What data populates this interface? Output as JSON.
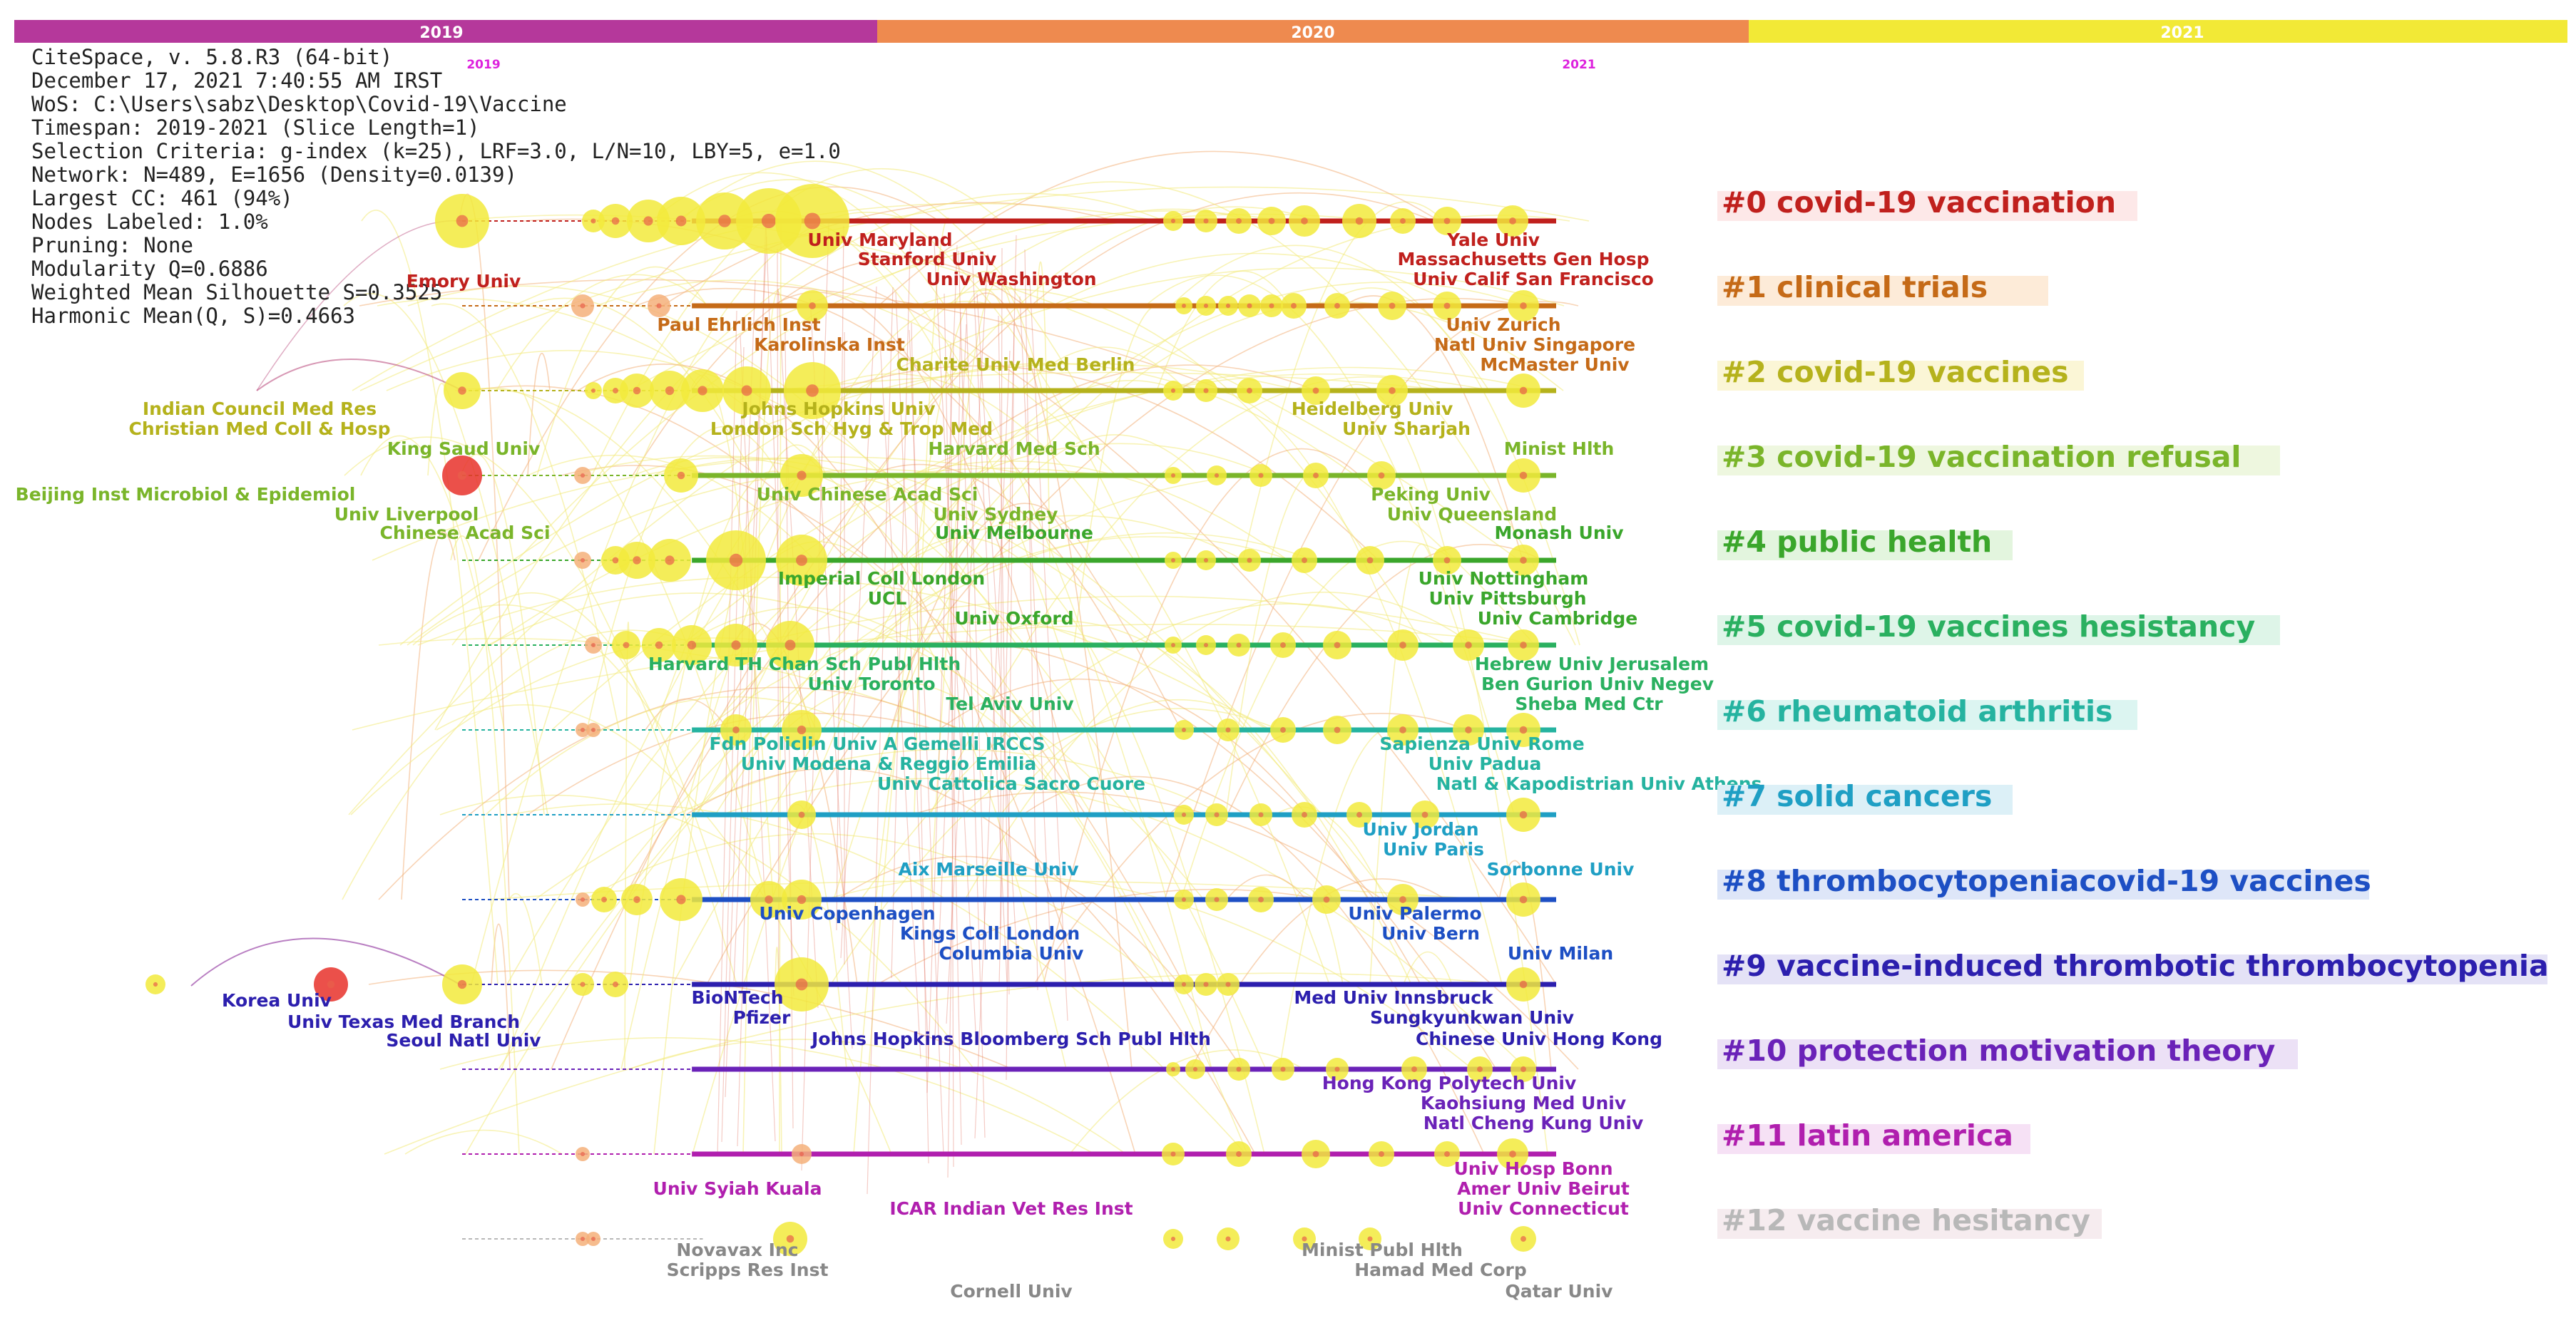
{
  "timeline": {
    "years": [
      {
        "label": "2019",
        "color": "#b5389b"
      },
      {
        "label": "2020",
        "color": "#ee8a4f"
      },
      {
        "label": "2021",
        "color": "#f2e936"
      }
    ],
    "year_markers": [
      "2019",
      "2021"
    ],
    "marker_color": "#dd22dd"
  },
  "info_panel": [
    "CiteSpace, v. 5.8.R3 (64-bit)",
    "December 17, 2021 7:40:55 AM IRST",
    "WoS: C:\\Users\\sabz\\Desktop\\Covid-19\\Vaccine",
    "Timespan: 2019-2021 (Slice Length=1)",
    "Selection Criteria: g-index (k=25), LRF=3.0, L/N=10, LBY=5, e=1.0",
    "Network: N=489, E=1656 (Density=0.0139)",
    "Largest CC: 461 (94%)",
    "Nodes Labeled: 1.0%",
    "Pruning: None",
    "Modularity Q=0.6886",
    "Weighted Mean Silhouette S=0.3525",
    "Harmonic Mean(Q, S)=0.4663"
  ],
  "clusters": [
    {
      "label": "#0 covid-19 vaccination",
      "color": "#c0201d",
      "bg": "#fde8e8"
    },
    {
      "label": "#1 clinical trials",
      "color": "#c56a17",
      "bg": "#fdebd8"
    },
    {
      "label": "#2 covid-19 vaccines",
      "color": "#b5b21c",
      "bg": "#fbf6d6"
    },
    {
      "label": "#3 covid-19 vaccination refusal",
      "color": "#7ab52a",
      "bg": "#eef7df"
    },
    {
      "label": "#4 public health",
      "color": "#3aa62b",
      "bg": "#e3f5de"
    },
    {
      "label": "#5 covid-19 vaccines hesistancy",
      "color": "#2ab060",
      "bg": "#def5e8"
    },
    {
      "label": "#6 rheumatoid arthritis",
      "color": "#25b3a0",
      "bg": "#dcf5f1"
    },
    {
      "label": "#7 solid cancers",
      "color": "#1f9fc4",
      "bg": "#dcf0f7"
    },
    {
      "label": "#8 thrombocytopeniacovid-19 vaccines",
      "color": "#1d4fc4",
      "bg": "#dee6f8"
    },
    {
      "label": "#9 vaccine-induced thrombotic thrombocytopenia",
      "color": "#2c1fae",
      "bg": "#e4e2f6"
    },
    {
      "label": "#10 protection motivation theory",
      "color": "#6a22b8",
      "bg": "#ece1f6"
    },
    {
      "label": "#11 latin america",
      "color": "#b01fae",
      "bg": "#f6e1f5"
    },
    {
      "label": "#12 vaccine hesitancy",
      "color": "#b8b8b8",
      "bg": "#f6ecef"
    }
  ],
  "node_labels": [
    {
      "text": "Emory Univ",
      "cluster": 0
    },
    {
      "text": "Univ Maryland",
      "cluster": 0
    },
    {
      "text": "Stanford Univ",
      "cluster": 0
    },
    {
      "text": "Univ Washington",
      "cluster": 0
    },
    {
      "text": "Yale Univ",
      "cluster": 0
    },
    {
      "text": "Massachusetts Gen Hosp",
      "cluster": 0
    },
    {
      "text": "Univ Calif San Francisco",
      "cluster": 0
    },
    {
      "text": "Paul Ehrlich Inst",
      "cluster": 1
    },
    {
      "text": "Karolinska Inst",
      "cluster": 1
    },
    {
      "text": "Univ Zurich",
      "cluster": 1
    },
    {
      "text": "Natl Univ Singapore",
      "cluster": 1
    },
    {
      "text": "McMaster Univ",
      "cluster": 1
    },
    {
      "text": "Charite Univ Med Berlin",
      "cluster": 2
    },
    {
      "text": "Indian Council Med Res",
      "cluster": 2
    },
    {
      "text": "Christian Med Coll & Hosp",
      "cluster": 2
    },
    {
      "text": "Johns Hopkins Univ",
      "cluster": 2
    },
    {
      "text": "London Sch Hyg & Trop Med",
      "cluster": 2
    },
    {
      "text": "Heidelberg Univ",
      "cluster": 2
    },
    {
      "text": "Univ Sharjah",
      "cluster": 2
    },
    {
      "text": "King Saud Univ",
      "cluster": 3
    },
    {
      "text": "Harvard Med Sch",
      "cluster": 3
    },
    {
      "text": "Minist Hlth",
      "cluster": 3
    },
    {
      "text": "Beijing Inst Microbiol & Epidemiol",
      "cluster": 3
    },
    {
      "text": "Univ Chinese Acad Sci",
      "cluster": 3
    },
    {
      "text": "Peking Univ",
      "cluster": 3
    },
    {
      "text": "Univ Liverpool",
      "cluster": 3
    },
    {
      "text": "Chinese Acad Sci",
      "cluster": 3
    },
    {
      "text": "Univ Sydney",
      "cluster": 3
    },
    {
      "text": "Univ Queensland",
      "cluster": 3
    },
    {
      "text": "Univ Melbourne",
      "cluster": 4
    },
    {
      "text": "Monash Univ",
      "cluster": 4
    },
    {
      "text": "Imperial Coll London",
      "cluster": 4
    },
    {
      "text": "Univ Nottingham",
      "cluster": 4
    },
    {
      "text": "UCL",
      "cluster": 4
    },
    {
      "text": "Univ Pittsburgh",
      "cluster": 4
    },
    {
      "text": "Univ Oxford",
      "cluster": 4
    },
    {
      "text": "Univ Cambridge",
      "cluster": 4
    },
    {
      "text": "Harvard TH Chan Sch Publ Hlth",
      "cluster": 5
    },
    {
      "text": "Hebrew Univ Jerusalem",
      "cluster": 5
    },
    {
      "text": "Univ Toronto",
      "cluster": 5
    },
    {
      "text": "Ben Gurion Univ Negev",
      "cluster": 5
    },
    {
      "text": "Tel Aviv Univ",
      "cluster": 5
    },
    {
      "text": "Sheba Med Ctr",
      "cluster": 5
    },
    {
      "text": "Fdn Policlin Univ A Gemelli IRCCS",
      "cluster": 6
    },
    {
      "text": "Sapienza Univ Rome",
      "cluster": 6
    },
    {
      "text": "Univ Modena & Reggio Emilia",
      "cluster": 6
    },
    {
      "text": "Univ Padua",
      "cluster": 6
    },
    {
      "text": "Univ Cattolica Sacro Cuore",
      "cluster": 6
    },
    {
      "text": "Natl & Kapodistrian Univ Athens",
      "cluster": 6
    },
    {
      "text": "Univ Jordan",
      "cluster": 7
    },
    {
      "text": "Univ Paris",
      "cluster": 7
    },
    {
      "text": "Aix Marseille Univ",
      "cluster": 7
    },
    {
      "text": "Sorbonne Univ",
      "cluster": 7
    },
    {
      "text": "Univ Copenhagen",
      "cluster": 8
    },
    {
      "text": "Univ Palermo",
      "cluster": 8
    },
    {
      "text": "Kings Coll London",
      "cluster": 8
    },
    {
      "text": "Univ Bern",
      "cluster": 8
    },
    {
      "text": "Columbia Univ",
      "cluster": 8
    },
    {
      "text": "Univ Milan",
      "cluster": 8
    },
    {
      "text": "BioNTech",
      "cluster": 9
    },
    {
      "text": "Med Univ Innsbruck",
      "cluster": 9
    },
    {
      "text": "Korea Univ",
      "cluster": 9
    },
    {
      "text": "Pfizer",
      "cluster": 9
    },
    {
      "text": "Sungkyunkwan Univ",
      "cluster": 9
    },
    {
      "text": "Univ Texas Med Branch",
      "cluster": 9
    },
    {
      "text": "Seoul Natl Univ",
      "cluster": 9
    },
    {
      "text": "Johns Hopkins Bloomberg Sch Publ Hlth",
      "cluster": 9
    },
    {
      "text": "Chinese Univ Hong Kong",
      "cluster": 9
    },
    {
      "text": "Hong Kong Polytech Univ",
      "cluster": 10
    },
    {
      "text": "Kaohsiung Med Univ",
      "cluster": 10
    },
    {
      "text": "Natl Cheng Kung Univ",
      "cluster": 10
    },
    {
      "text": "Univ Hosp Bonn",
      "cluster": 11
    },
    {
      "text": "Amer Univ Beirut",
      "cluster": 11
    },
    {
      "text": "Univ Syiah Kuala",
      "cluster": 11
    },
    {
      "text": "Univ Connecticut",
      "cluster": 11
    },
    {
      "text": "ICAR Indian Vet Res Inst",
      "cluster": 11
    },
    {
      "text": "Novavax Inc",
      "cluster": 12
    },
    {
      "text": "Minist Publ Hlth",
      "cluster": 12
    },
    {
      "text": "Scripps Res Inst",
      "cluster": 12
    },
    {
      "text": "Hamad Med Corp",
      "cluster": 12
    },
    {
      "text": "Cornell Univ",
      "cluster": 12
    },
    {
      "text": "Qatar Univ",
      "cluster": 12
    }
  ],
  "edge_colors": {
    "yellow": "#f3e97a",
    "orange": "#f2b07a",
    "red": "#e06a5a"
  }
}
